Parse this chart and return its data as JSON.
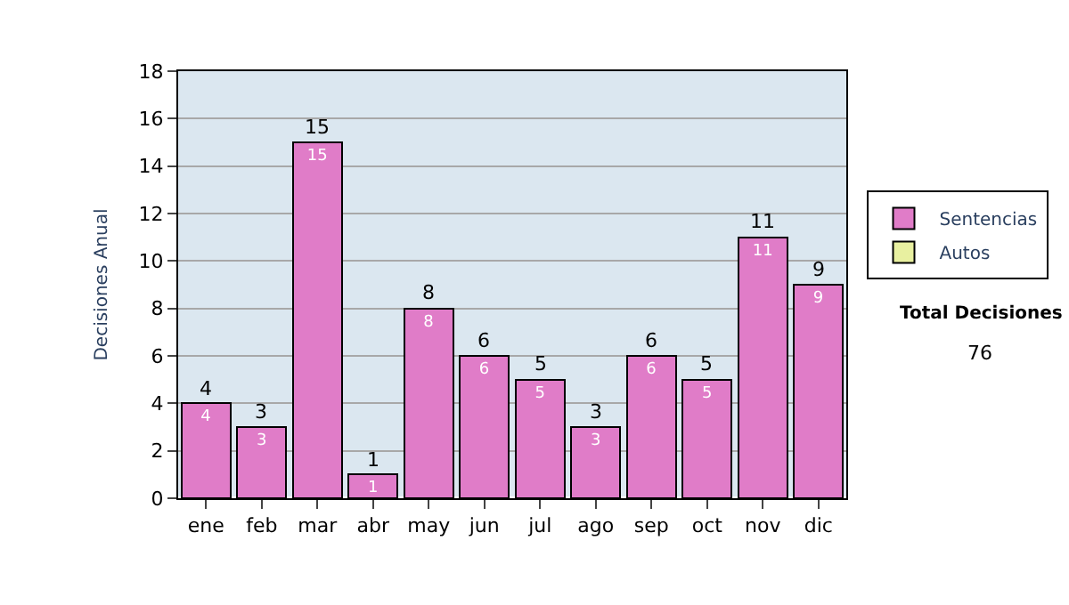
{
  "chart_data": {
    "type": "bar",
    "ylabel": "Decisiones Anual",
    "categories": [
      "ene",
      "feb",
      "mar",
      "abr",
      "may",
      "jun",
      "jul",
      "ago",
      "sep",
      "oct",
      "nov",
      "dic"
    ],
    "series": [
      {
        "name": "Sentencias",
        "color": "#e07cc8",
        "values": [
          4,
          3,
          15,
          1,
          8,
          6,
          5,
          3,
          6,
          5,
          11,
          9
        ],
        "value_labels": [
          "4",
          "3",
          "15",
          "1",
          "8",
          "6",
          "5",
          "3",
          "6",
          "5",
          "11",
          "9"
        ]
      },
      {
        "name": "Autos",
        "color": "#e8f0a0",
        "values": [
          null,
          null,
          null,
          null,
          null,
          null,
          null,
          null,
          null,
          null,
          null,
          null
        ]
      }
    ],
    "stacked": true,
    "totals": [
      "4",
      "3",
      "15",
      "1",
      "8",
      "6",
      "5",
      "3",
      "6",
      "5",
      "11",
      "9"
    ],
    "ylim": [
      0,
      18
    ],
    "yticks": [
      0,
      2,
      4,
      6,
      8,
      10,
      12,
      14,
      16,
      18
    ],
    "grid": "y",
    "legend": "right",
    "annotations": [
      "Total Decisiones",
      "76"
    ]
  }
}
